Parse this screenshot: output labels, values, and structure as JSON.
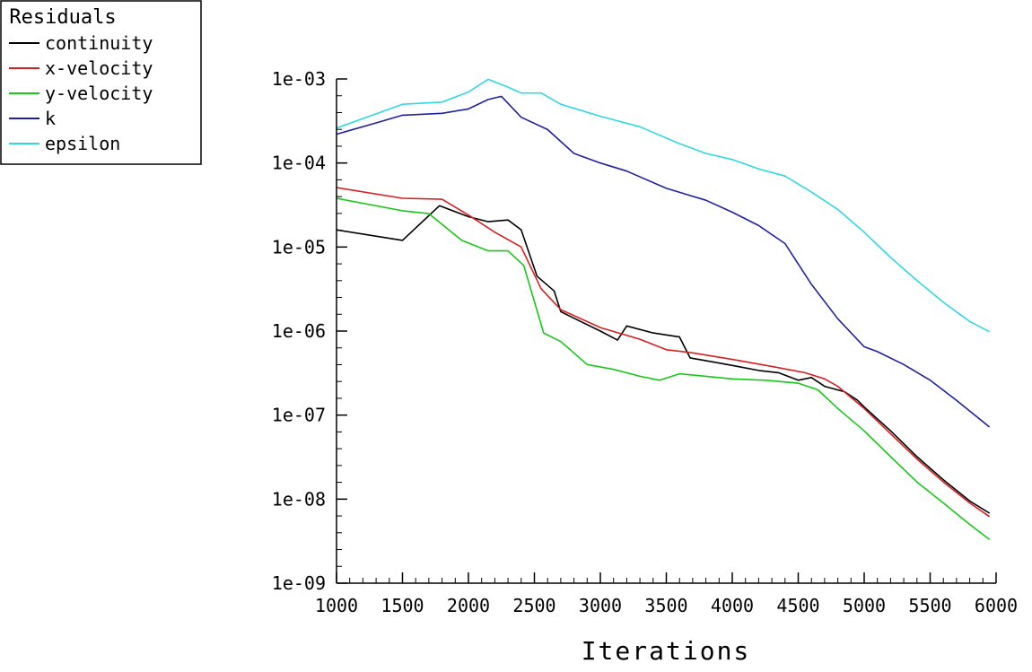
{
  "chart_data": {
    "type": "line",
    "title": "",
    "xlabel": "Iterations",
    "ylabel": "",
    "yscale": "log",
    "xlim": [
      1000,
      6000
    ],
    "ylim": [
      1e-09,
      0.001
    ],
    "x_ticks": [
      1000,
      1500,
      2000,
      2500,
      3000,
      3500,
      4000,
      4500,
      5000,
      5500,
      6000
    ],
    "x_tick_labels": [
      "1000",
      "1500",
      "2000",
      "2500",
      "3000",
      "3500",
      "4000",
      "4500",
      "5000",
      "5500",
      "6000"
    ],
    "y_ticks": [
      1e-09,
      1e-08,
      1e-07,
      1e-06,
      1e-05,
      0.0001,
      0.001
    ],
    "y_tick_labels": [
      "1e-09",
      "1e-08",
      "1e-07",
      "1e-06",
      "1e-05",
      "1e-04",
      "1e-03"
    ],
    "grid": false,
    "legend": {
      "title": "Residuals",
      "position": "top-left"
    },
    "series": [
      {
        "name": "continuity",
        "color": "#000000",
        "points": [
          [
            1000,
            1.6e-05
          ],
          [
            1500,
            1.2e-05
          ],
          [
            1780,
            3.1e-05
          ],
          [
            2000,
            2.3e-05
          ],
          [
            2150,
            2e-05
          ],
          [
            2300,
            2.1e-05
          ],
          [
            2400,
            1.6e-05
          ],
          [
            2520,
            4.5e-06
          ],
          [
            2650,
            3e-06
          ],
          [
            2700,
            1.7e-06
          ],
          [
            2850,
            1.3e-06
          ],
          [
            3000,
            1e-06
          ],
          [
            3130,
            7.8e-07
          ],
          [
            3200,
            1.15e-06
          ],
          [
            3400,
            9.5e-07
          ],
          [
            3600,
            8.5e-07
          ],
          [
            3680,
            4.8e-07
          ],
          [
            3850,
            4.3e-07
          ],
          [
            4000,
            3.9e-07
          ],
          [
            4200,
            3.4e-07
          ],
          [
            4350,
            3.2e-07
          ],
          [
            4500,
            2.6e-07
          ],
          [
            4600,
            2.8e-07
          ],
          [
            4700,
            2.2e-07
          ],
          [
            4850,
            1.9e-07
          ],
          [
            4950,
            1.5e-07
          ],
          [
            5000,
            1.25e-07
          ],
          [
            5200,
            6.5e-08
          ],
          [
            5400,
            3.2e-08
          ],
          [
            5600,
            1.7e-08
          ],
          [
            5800,
            9.5e-09
          ],
          [
            5950,
            6.8e-09
          ]
        ]
      },
      {
        "name": "x-velocity",
        "color": "#d42020",
        "points": [
          [
            1000,
            5.1e-05
          ],
          [
            1500,
            3.8e-05
          ],
          [
            1800,
            3.7e-05
          ],
          [
            2000,
            2.4e-05
          ],
          [
            2200,
            1.5e-05
          ],
          [
            2400,
            1e-05
          ],
          [
            2550,
            3.2e-06
          ],
          [
            2700,
            1.8e-06
          ],
          [
            3000,
            1.1e-06
          ],
          [
            3300,
            8e-07
          ],
          [
            3500,
            6e-07
          ],
          [
            3700,
            5.5e-07
          ],
          [
            4000,
            4.6e-07
          ],
          [
            4300,
            3.8e-07
          ],
          [
            4550,
            3.2e-07
          ],
          [
            4700,
            2.7e-07
          ],
          [
            4800,
            2.2e-07
          ],
          [
            5000,
            1.2e-07
          ],
          [
            5200,
            6e-08
          ],
          [
            5400,
            3e-08
          ],
          [
            5600,
            1.6e-08
          ],
          [
            5800,
            9e-09
          ],
          [
            5950,
            6.2e-09
          ]
        ]
      },
      {
        "name": "y-velocity",
        "color": "#18c818",
        "points": [
          [
            1000,
            3.8e-05
          ],
          [
            1500,
            2.7e-05
          ],
          [
            1700,
            2.5e-05
          ],
          [
            1950,
            1.2e-05
          ],
          [
            2150,
            9e-06
          ],
          [
            2300,
            9e-06
          ],
          [
            2420,
            6e-06
          ],
          [
            2570,
            9.5e-07
          ],
          [
            2700,
            7.5e-07
          ],
          [
            2900,
            4e-07
          ],
          [
            3100,
            3.5e-07
          ],
          [
            3300,
            2.9e-07
          ],
          [
            3450,
            2.6e-07
          ],
          [
            3600,
            3.1e-07
          ],
          [
            3800,
            2.9e-07
          ],
          [
            4000,
            2.7e-07
          ],
          [
            4250,
            2.6e-07
          ],
          [
            4500,
            2.4e-07
          ],
          [
            4650,
            2e-07
          ],
          [
            4800,
            1.2e-07
          ],
          [
            5000,
            6.5e-08
          ],
          [
            5200,
            3.2e-08
          ],
          [
            5400,
            1.6e-08
          ],
          [
            5600,
            9e-09
          ],
          [
            5800,
            5e-09
          ],
          [
            5950,
            3.3e-09
          ]
        ]
      },
      {
        "name": "k",
        "color": "#2020a0",
        "points": [
          [
            1000,
            0.00022
          ],
          [
            1300,
            0.0003
          ],
          [
            1500,
            0.00037
          ],
          [
            1800,
            0.00039
          ],
          [
            2000,
            0.00044
          ],
          [
            2150,
            0.00057
          ],
          [
            2250,
            0.00062
          ],
          [
            2400,
            0.00035
          ],
          [
            2600,
            0.00025
          ],
          [
            2800,
            0.00013
          ],
          [
            3000,
            0.0001
          ],
          [
            3200,
            8e-05
          ],
          [
            3500,
            5e-05
          ],
          [
            3800,
            3.6e-05
          ],
          [
            4000,
            2.6e-05
          ],
          [
            4200,
            1.8e-05
          ],
          [
            4400,
            1.1e-05
          ],
          [
            4600,
            3.6e-06
          ],
          [
            4800,
            1.4e-06
          ],
          [
            5000,
            6.5e-07
          ],
          [
            5100,
            5.7e-07
          ],
          [
            5300,
            4e-07
          ],
          [
            5500,
            2.6e-07
          ],
          [
            5700,
            1.5e-07
          ],
          [
            5950,
            7.2e-08
          ]
        ]
      },
      {
        "name": "epsilon",
        "color": "#30d8e0",
        "points": [
          [
            1000,
            0.00026
          ],
          [
            1500,
            0.0005
          ],
          [
            1800,
            0.00053
          ],
          [
            2000,
            0.0007
          ],
          [
            2150,
            0.00099
          ],
          [
            2300,
            0.0008
          ],
          [
            2400,
            0.00068
          ],
          [
            2550,
            0.00068
          ],
          [
            2700,
            0.0005
          ],
          [
            3000,
            0.00036
          ],
          [
            3300,
            0.00027
          ],
          [
            3600,
            0.00017
          ],
          [
            3800,
            0.00013
          ],
          [
            4000,
            0.00011
          ],
          [
            4200,
            8.5e-05
          ],
          [
            4400,
            7e-05
          ],
          [
            4600,
            4.5e-05
          ],
          [
            4800,
            2.8e-05
          ],
          [
            5000,
            1.5e-05
          ],
          [
            5200,
            7.5e-06
          ],
          [
            5400,
            4e-06
          ],
          [
            5600,
            2.2e-06
          ],
          [
            5800,
            1.3e-06
          ],
          [
            5950,
            9.8e-07
          ]
        ]
      }
    ]
  }
}
